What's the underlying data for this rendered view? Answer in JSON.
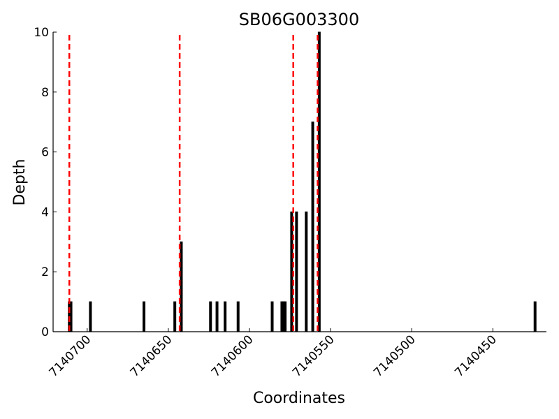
{
  "chart_data": {
    "type": "bar",
    "title": "SB06G003300",
    "xlabel": "Coordinates",
    "ylabel": "Depth",
    "xlim": [
      7140721,
      7140417
    ],
    "x_reversed": true,
    "ylim": [
      0,
      10
    ],
    "yticks": [
      0,
      2,
      4,
      6,
      8,
      10
    ],
    "xticks": [
      7140700,
      7140650,
      7140600,
      7140550,
      7140500,
      7140450
    ],
    "grid": false,
    "legend": "none",
    "bar_color": "#000000",
    "marker_color": "#ff0000",
    "bars": [
      {
        "x": 7140711,
        "y": 1
      },
      {
        "x": 7140710,
        "y": 1
      },
      {
        "x": 7140698,
        "y": 1
      },
      {
        "x": 7140665,
        "y": 1
      },
      {
        "x": 7140646,
        "y": 1
      },
      {
        "x": 7140642,
        "y": 3
      },
      {
        "x": 7140624,
        "y": 1
      },
      {
        "x": 7140620,
        "y": 1
      },
      {
        "x": 7140615,
        "y": 1
      },
      {
        "x": 7140607,
        "y": 1
      },
      {
        "x": 7140586,
        "y": 1
      },
      {
        "x": 7140580,
        "y": 1
      },
      {
        "x": 7140579,
        "y": 1
      },
      {
        "x": 7140578,
        "y": 1
      },
      {
        "x": 7140574,
        "y": 4
      },
      {
        "x": 7140571,
        "y": 4
      },
      {
        "x": 7140565,
        "y": 4
      },
      {
        "x": 7140561,
        "y": 7
      },
      {
        "x": 7140557,
        "y": 10
      },
      {
        "x": 7140424,
        "y": 1
      }
    ],
    "markers": [
      7140711,
      7140643,
      7140573,
      7140558
    ]
  }
}
